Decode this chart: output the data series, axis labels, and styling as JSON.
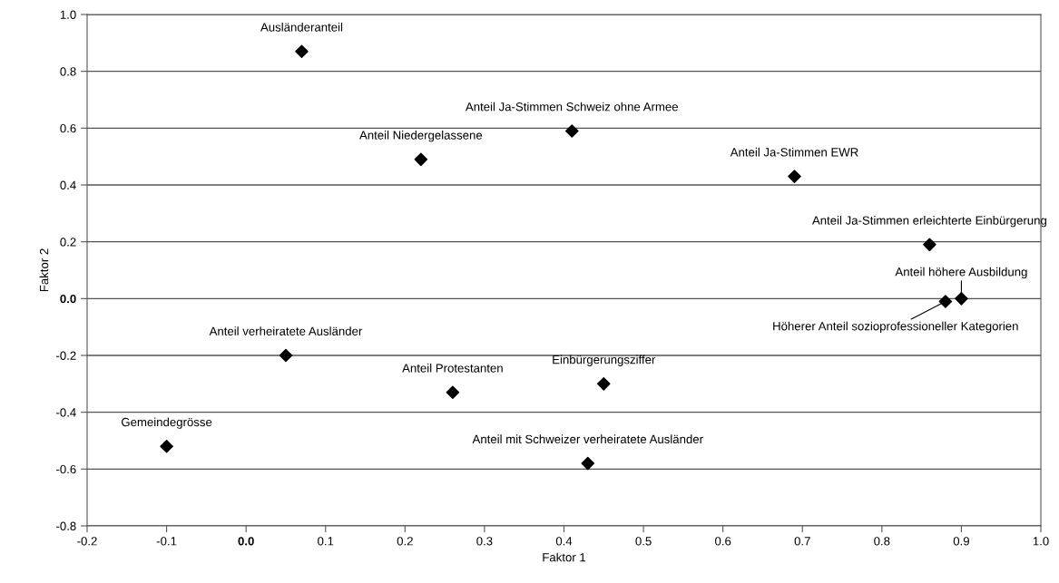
{
  "chart_data": {
    "type": "scatter",
    "xlabel": "Faktor 1",
    "ylabel": "Faktor 2",
    "xlim": [
      -0.2,
      1.0
    ],
    "ylim": [
      -0.8,
      1.0
    ],
    "xticks": [
      -0.2,
      -0.1,
      {
        "value": 0,
        "label": "0.0"
      },
      0.1,
      0.2,
      0.3,
      0.4,
      0.5,
      0.6,
      0.7,
      0.8,
      0.9,
      {
        "value": 1,
        "label": "1.0"
      }
    ],
    "yticks": [
      -0.8,
      -0.6,
      -0.4,
      -0.2,
      {
        "value": 0,
        "label": "0.0"
      },
      0.2,
      0.4,
      0.6,
      0.8,
      {
        "value": 1,
        "label": "1.0"
      }
    ],
    "grid": "y",
    "marker": "diamond",
    "series": [
      {
        "color": "#000000",
        "x": [
          0.07,
          0.22,
          0.41,
          0.69,
          0.86,
          0.9,
          0.88,
          0.05,
          0.26,
          0.45,
          0.43,
          -0.1
        ],
        "values": [
          0.87,
          0.49,
          0.59,
          0.43,
          0.19,
          0.0,
          -0.01,
          -0.2,
          -0.33,
          -0.3,
          -0.58,
          -0.52
        ]
      }
    ],
    "annotations": [
      {
        "text": "Ausländeranteil",
        "x": 0.07,
        "y": 0.87
      },
      {
        "text": "Anteil Niedergelassene",
        "x": 0.22,
        "y": 0.49
      },
      {
        "text": "Anteil Ja-Stimmen Schweiz ohne Armee",
        "x": 0.41,
        "y": 0.59
      },
      {
        "text": "Anteil Ja-Stimmen EWR",
        "x": 0.69,
        "y": 0.43
      },
      {
        "text": "Anteil Ja-Stimmen erleichterte Einbürgerung",
        "x": 0.86,
        "y": 0.19
      },
      {
        "text": "Anteil höhere Ausbildung",
        "x": 0.9,
        "y": 0.0
      },
      {
        "text": "Höherer Anteil sozioprofessioneller Kategorien",
        "x": 0.88,
        "y": -0.01
      },
      {
        "text": "Anteil verheiratete Ausländer",
        "x": 0.05,
        "y": -0.2
      },
      {
        "text": "Anteil Protestanten",
        "x": 0.26,
        "y": -0.33
      },
      {
        "text": "Einbürgerungsziffer",
        "x": 0.45,
        "y": -0.3
      },
      {
        "text": "Anteil mit Schweizer verheiratete Ausländer",
        "x": 0.43,
        "y": -0.58
      },
      {
        "text": "Gemeindegrösse",
        "x": -0.1,
        "y": -0.52
      }
    ]
  }
}
